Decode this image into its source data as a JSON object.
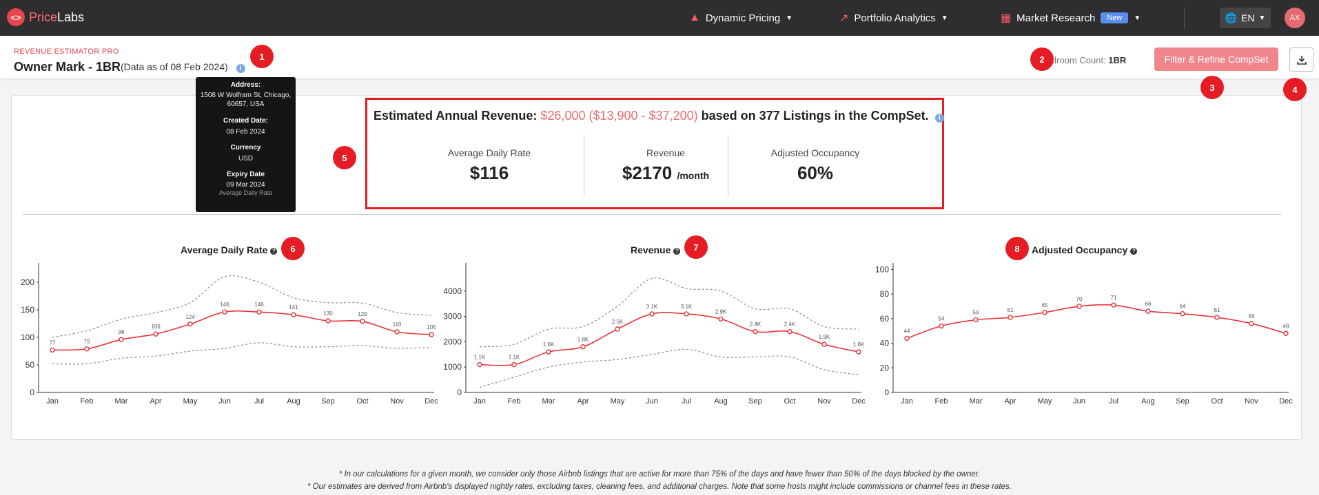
{
  "nav": {
    "logo_mark": "<>",
    "logo_price": "Price",
    "logo_labs": "Labs",
    "dynamic_pricing": "Dynamic Pricing",
    "portfolio_analytics": "Portfolio Analytics",
    "market_research": "Market Research",
    "new_badge": "New",
    "lang": "EN",
    "avatar": "AX"
  },
  "header": {
    "eyebrow": "REVENUE ESTIMATOR PRO",
    "title": "Owner Mark - 1BR",
    "as_of": "(Data as of 08 Feb 2024)",
    "bedroom_label": "Bedroom Count:",
    "bedroom_value": "1BR",
    "filter_button": "Filter & Refine CompSet"
  },
  "tooltip": {
    "address_label": "Address:",
    "address_value": "1508 W Wolfram St, Chicago, 60657, USA",
    "created_label": "Created Date:",
    "created_value": "08 Feb 2024",
    "currency_label": "Currency",
    "currency_value": "USD",
    "expiry_label": "Expiry Date",
    "expiry_value": "09 Mar 2024",
    "trailing_text": "Average Daily Rate"
  },
  "summary": {
    "prefix": "Estimated Annual Revenue:",
    "estimate": "$26,000 ($13,900 - $37,200)",
    "suffix": "based on 377 Listings in the CompSet.",
    "metrics": [
      {
        "label": "Average Daily Rate",
        "value": "$116",
        "unit": ""
      },
      {
        "label": "Revenue",
        "value": "$2170",
        "unit": "/month"
      },
      {
        "label": "Adjusted Occupancy",
        "value": "60%",
        "unit": ""
      }
    ]
  },
  "callouts": [
    "1",
    "2",
    "3",
    "4",
    "5",
    "6",
    "7",
    "8"
  ],
  "footnotes": [
    "* In our calculations for a given month, we consider only those Airbnb listings that are active for more than 75% of the days and have fewer than 50% of the days blocked by the owner.",
    "* Our estimates are derived from Airbnb's displayed nightly rates, excluding taxes, cleaning fees, and additional charges. Note that some hosts might include commissions or channel fees in these rates."
  ],
  "colors": {
    "accent": "#e51c23",
    "line": "#e8333a",
    "band": "#888888"
  },
  "chart_data": [
    {
      "type": "line",
      "title": "Average Daily Rate",
      "categories": [
        "Jan",
        "Feb",
        "Mar",
        "Apr",
        "May",
        "Jun",
        "Jul",
        "Aug",
        "Sep",
        "Oct",
        "Nov",
        "Dec"
      ],
      "values": [
        77,
        79,
        96,
        106,
        124,
        146,
        146,
        141,
        130,
        129,
        110,
        105
      ],
      "labels": [
        "77",
        "79",
        "96",
        "106",
        "124",
        "146",
        "146",
        "141",
        "130",
        "129",
        "110",
        "105"
      ],
      "upper": [
        100,
        112,
        133,
        145,
        163,
        210,
        200,
        172,
        163,
        162,
        145,
        140
      ],
      "lower": [
        52,
        52,
        62,
        66,
        75,
        80,
        90,
        83,
        83,
        85,
        80,
        82
      ],
      "yticks": [
        0,
        50,
        100,
        150,
        200
      ],
      "ylim": [
        0,
        230
      ]
    },
    {
      "type": "line",
      "title": "Revenue",
      "categories": [
        "Jan",
        "Feb",
        "Mar",
        "Apr",
        "May",
        "Jun",
        "Jul",
        "Aug",
        "Sep",
        "Oct",
        "Nov",
        "Dec"
      ],
      "values": [
        1100,
        1100,
        1600,
        1800,
        2500,
        3100,
        3100,
        2900,
        2400,
        2400,
        1900,
        1600
      ],
      "labels": [
        "1.1K",
        "1.1K",
        "1.6K",
        "1.8K",
        "2.5K",
        "3.1K",
        "3.1K",
        "2.9K",
        "2.4K",
        "2.4K",
        "1.9K",
        "1.6K"
      ],
      "upper": [
        1800,
        1900,
        2500,
        2600,
        3400,
        4500,
        4100,
        4000,
        3300,
        3300,
        2600,
        2500
      ],
      "lower": [
        200,
        600,
        1000,
        1200,
        1300,
        1500,
        1700,
        1400,
        1400,
        1400,
        900,
        700
      ],
      "yticks": [
        0,
        1000,
        2000,
        3000,
        4000
      ],
      "ylim": [
        0,
        5000
      ]
    },
    {
      "type": "line",
      "title": "Adjusted Occupancy",
      "categories": [
        "Jan",
        "Feb",
        "Mar",
        "Apr",
        "May",
        "Jun",
        "Jul",
        "Aug",
        "Sep",
        "Oct",
        "Nov",
        "Dec"
      ],
      "values": [
        44,
        54,
        59,
        61,
        65,
        70,
        71,
        66,
        64,
        61,
        56,
        48
      ],
      "labels": [
        "44",
        "54",
        "59",
        "61",
        "65",
        "70",
        "71",
        "66",
        "64",
        "61",
        "56",
        "48"
      ],
      "yticks": [
        0,
        20,
        40,
        60,
        80,
        100
      ],
      "ylim": [
        0,
        103
      ]
    }
  ]
}
